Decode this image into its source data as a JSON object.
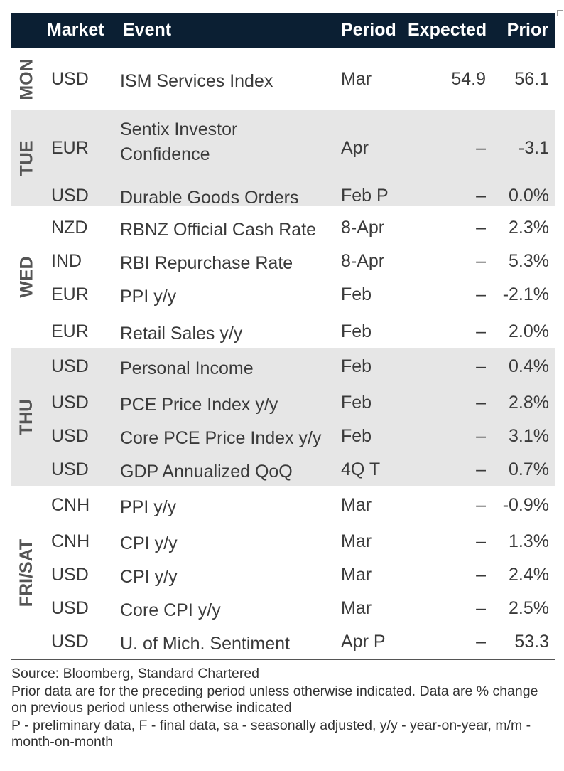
{
  "headers": {
    "market": "Market",
    "event": "Event",
    "period": "Period",
    "expected": "Expected",
    "prior": "Prior"
  },
  "groups": [
    {
      "day": "MON",
      "shaded": false,
      "rows": [
        {
          "market": "USD",
          "event": "ISM Services Index",
          "period": "Mar",
          "expected": "54.9",
          "prior": "56.1"
        }
      ]
    },
    {
      "day": "TUE",
      "shaded": true,
      "rows": [
        {
          "market": "EUR",
          "event": "Sentix Investor\nConfidence",
          "period": "Apr",
          "expected": "–",
          "prior": "-3.1"
        },
        {
          "market": "USD",
          "event": "Durable Goods Orders",
          "period": "Feb P",
          "expected": "–",
          "prior": "0.0%"
        }
      ]
    },
    {
      "day": "WED",
      "shaded": false,
      "rows": [
        {
          "market": "NZD",
          "event": "RBNZ Official Cash Rate",
          "period": "8-Apr",
          "expected": "–",
          "prior": "2.3%"
        },
        {
          "market": "IND",
          "event": "RBI Repurchase Rate",
          "period": "8-Apr",
          "expected": "–",
          "prior": "5.3%"
        },
        {
          "market": "EUR",
          "event": "PPI y/y",
          "period": "Feb",
          "expected": "–",
          "prior": "-2.1%"
        },
        {
          "market": "EUR",
          "event": "Retail Sales y/y",
          "period": "Feb",
          "expected": "–",
          "prior": "2.0%"
        }
      ]
    },
    {
      "day": "THU",
      "shaded": true,
      "rows": [
        {
          "market": "USD",
          "event": "Personal Income",
          "period": "Feb",
          "expected": "–",
          "prior": "0.4%"
        },
        {
          "market": "USD",
          "event": "PCE Price Index y/y",
          "period": "Feb",
          "expected": "–",
          "prior": "2.8%"
        },
        {
          "market": "USD",
          "event": "Core PCE Price Index y/y",
          "period": "Feb",
          "expected": "–",
          "prior": "3.1%"
        },
        {
          "market": "USD",
          "event": "GDP Annualized QoQ",
          "period": "4Q T",
          "expected": "–",
          "prior": "0.7%"
        }
      ]
    },
    {
      "day": "FRI/SAT",
      "shaded": false,
      "rows": [
        {
          "market": "CNH",
          "event": "PPI y/y",
          "period": "Mar",
          "expected": "–",
          "prior": "-0.9%"
        },
        {
          "market": "CNH",
          "event": "CPI y/y",
          "period": "Mar",
          "expected": "–",
          "prior": "1.3%"
        },
        {
          "market": "USD",
          "event": "CPI y/y",
          "period": "Mar",
          "expected": "–",
          "prior": "2.4%"
        },
        {
          "market": "USD",
          "event": "Core CPI y/y",
          "period": "Mar",
          "expected": "–",
          "prior": "2.5%"
        },
        {
          "market": "USD",
          "event": "U. of Mich. Sentiment",
          "period": "Apr P",
          "expected": "–",
          "prior": "53.3"
        }
      ]
    }
  ],
  "footer": {
    "source": "Source: Bloomberg, Standard Chartered",
    "note1": "Prior data are for the preceding period unless otherwise indicated. Data are % change on previous period unless otherwise indicated",
    "note2": "P - preliminary data, F - final data, sa - seasonally adjusted, y/y - year-on-year, m/m - month-on-month"
  },
  "colors": {
    "header_bg": "#0b1f33",
    "shade": "#e6e6e6"
  }
}
